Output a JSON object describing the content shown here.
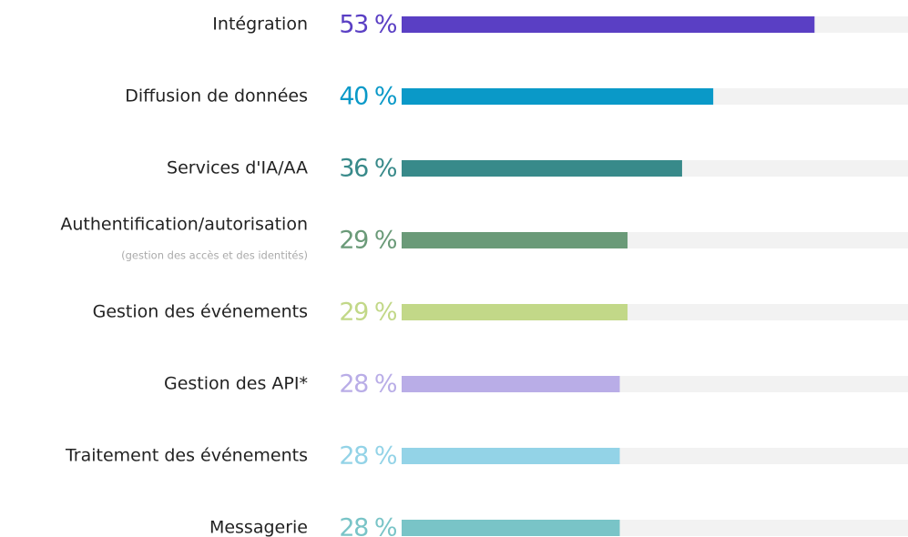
{
  "chart_data": {
    "type": "bar",
    "orientation": "horizontal",
    "categories": [
      "Intégration",
      "Diffusion de données",
      "Services d'IA/AA",
      "Authentification/autorisation",
      "Gestion des événements",
      "Gestion des API*",
      "Traitement des événements",
      "Messagerie"
    ],
    "category_notes": [
      null,
      null,
      null,
      "(gestion des accès et des identités)",
      null,
      null,
      null,
      null
    ],
    "values": [
      53,
      40,
      36,
      29,
      29,
      28,
      28,
      28
    ],
    "value_labels": [
      "53 %",
      "40 %",
      "36 %",
      "29 %",
      "29 %",
      "28 %",
      "28 %",
      "28 %"
    ],
    "colors": [
      "#5a3fc4",
      "#0a99c8",
      "#388a8a",
      "#6a9a78",
      "#c2d888",
      "#b9ade7",
      "#93d3e7",
      "#79c4c7"
    ],
    "xlim": [
      0,
      65
    ]
  }
}
